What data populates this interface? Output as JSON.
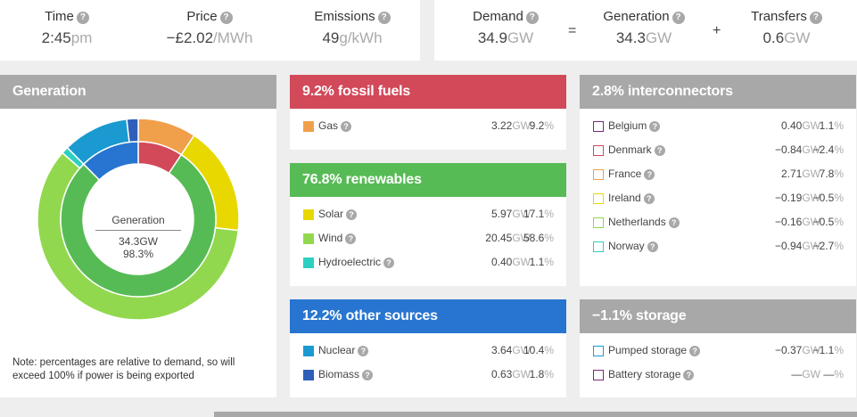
{
  "stats": {
    "time": {
      "label": "Time",
      "value": "2:45",
      "unit": "pm"
    },
    "price": {
      "label": "Price",
      "value": "−£2.02",
      "unit": "/MWh"
    },
    "emissions": {
      "label": "Emissions",
      "value": "49",
      "unit": "g/kWh"
    },
    "demand": {
      "label": "Demand",
      "value": "34.9",
      "unit": "GW"
    },
    "equals": "=",
    "generation": {
      "label": "Generation",
      "value": "34.3",
      "unit": "GW"
    },
    "plus": "+",
    "transfers": {
      "label": "Transfers",
      "value": "0.6",
      "unit": "GW"
    },
    "help_glyph": "?"
  },
  "generation_panel": {
    "title": "Generation",
    "center_title": "Generation",
    "center_value": "34.3GW",
    "center_pct": "98.3%",
    "note": "Note: percentages are relative to demand, so will exceed 100% if power is being exported"
  },
  "donut": {
    "outer": [
      {
        "name": "Gas",
        "value": 9.2,
        "color": "#f0a04b"
      },
      {
        "name": "Solar",
        "value": 17.1,
        "color": "#e8d800"
      },
      {
        "name": "Wind",
        "value": 58.6,
        "color": "#92d84f"
      },
      {
        "name": "Hydroelectric",
        "value": 1.1,
        "color": "#2dd0c0"
      },
      {
        "name": "Nuclear",
        "value": 10.4,
        "color": "#1a9ad0"
      },
      {
        "name": "Biomass",
        "value": 1.8,
        "color": "#2f5fb8"
      }
    ],
    "inner": [
      {
        "name": "fossil fuels",
        "value": 9.2,
        "color": "#d2495a"
      },
      {
        "name": "renewables",
        "value": 76.8,
        "color": "#57bb55"
      },
      {
        "name": "other sources",
        "value": 12.2,
        "color": "#2775d0"
      }
    ]
  },
  "fossil": {
    "title": "9.2% fossil fuels",
    "rows": [
      {
        "label": "Gas",
        "gw": "3.22",
        "pct": "9.2",
        "color": "#f0a04b"
      }
    ]
  },
  "renewables": {
    "title": "76.8% renewables",
    "rows": [
      {
        "label": "Solar",
        "gw": "5.97",
        "pct": "17.1",
        "color": "#e8d800"
      },
      {
        "label": "Wind",
        "gw": "20.45",
        "pct": "58.6",
        "color": "#92d84f"
      },
      {
        "label": "Hydroelectric",
        "gw": "0.40",
        "pct": "1.1",
        "color": "#2dd0c0"
      }
    ]
  },
  "other": {
    "title": "12.2% other sources",
    "rows": [
      {
        "label": "Nuclear",
        "gw": "3.64",
        "pct": "10.4",
        "color": "#1a9ad0"
      },
      {
        "label": "Biomass",
        "gw": "0.63",
        "pct": "1.8",
        "color": "#2f5fb8"
      }
    ]
  },
  "interconnectors": {
    "title": "2.8% interconnectors",
    "rows": [
      {
        "label": "Belgium",
        "gw": "0.40",
        "pct": "1.1",
        "color": "#7b2a7b"
      },
      {
        "label": "Denmark",
        "gw": "−0.84",
        "pct": "−2.4",
        "color": "#d2495a"
      },
      {
        "label": "France",
        "gw": "2.71",
        "pct": "7.8",
        "color": "#f0a04b"
      },
      {
        "label": "Ireland",
        "gw": "−0.19",
        "pct": "−0.5",
        "color": "#e8d800"
      },
      {
        "label": "Netherlands",
        "gw": "−0.16",
        "pct": "−0.5",
        "color": "#92d84f"
      },
      {
        "label": "Norway",
        "gw": "−0.94",
        "pct": "−2.7",
        "color": "#2dd0c0"
      }
    ]
  },
  "storage": {
    "title": "−1.1% storage",
    "rows": [
      {
        "label": "Pumped storage",
        "gw": "−0.37",
        "pct": "−1.1",
        "color": "#1a9ad0"
      },
      {
        "label": "Battery storage",
        "gw": "—",
        "pct": "—",
        "color": "#7b2a7b"
      }
    ]
  },
  "units": {
    "gw": "GW",
    "pct": "%"
  }
}
